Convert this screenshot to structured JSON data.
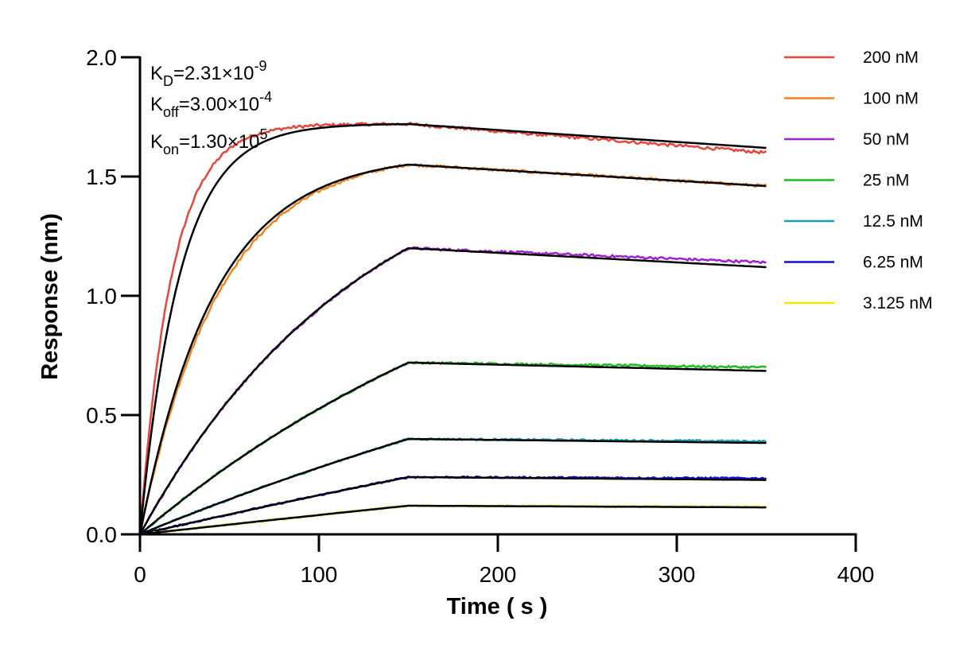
{
  "chart_data": {
    "type": "line",
    "title": "",
    "xlabel": "Time ( s )",
    "ylabel": "Response (nm)",
    "xlim": [
      0,
      400
    ],
    "ylim": [
      0,
      2.0
    ],
    "x_ticks": [
      "0",
      "100",
      "200",
      "300",
      "400"
    ],
    "y_ticks": [
      "0.0",
      "0.5",
      "1.0",
      "1.5",
      "2.0"
    ],
    "grid": false,
    "legend_position": "right",
    "association_end": 150,
    "x_end": 350,
    "kinetics": [
      {
        "name": "K",
        "sub": "D",
        "eq": "=2.31×10",
        "exp": "-9"
      },
      {
        "name": "K",
        "sub": "off",
        "eq": "=3.00×10",
        "exp": "-4"
      },
      {
        "name": "K",
        "sub": "on",
        "eq": "=1.30×10",
        "exp": "5"
      }
    ],
    "fit_color": "#000000",
    "series": [
      {
        "name": "200 nM",
        "color": "#e8463c",
        "peak": 1.72,
        "end": 1.6,
        "fit_end": 1.62,
        "k": 0.045
      },
      {
        "name": "100 nM",
        "color": "#f58220",
        "peak": 1.55,
        "end": 1.46,
        "fit_end": 1.46,
        "k": 0.024
      },
      {
        "name": "50 nM",
        "color": "#a020d0",
        "peak": 1.2,
        "end": 1.14,
        "fit_end": 1.12,
        "k": 0.008
      },
      {
        "name": "25 nM",
        "color": "#1fbb1f",
        "peak": 0.72,
        "end": 0.7,
        "fit_end": 0.685,
        "k": 0.004
      },
      {
        "name": "12.5 nM",
        "color": "#1ba0b4",
        "peak": 0.4,
        "end": 0.39,
        "fit_end": 0.383,
        "k": 0.002
      },
      {
        "name": "6.25 nM",
        "color": "#1010d8",
        "peak": 0.24,
        "end": 0.235,
        "fit_end": 0.228,
        "k": 0.001
      },
      {
        "name": "3.125 nM",
        "color": "#f0e800",
        "peak": 0.12,
        "end": 0.115,
        "fit_end": 0.113,
        "k": 0.0005
      }
    ]
  }
}
